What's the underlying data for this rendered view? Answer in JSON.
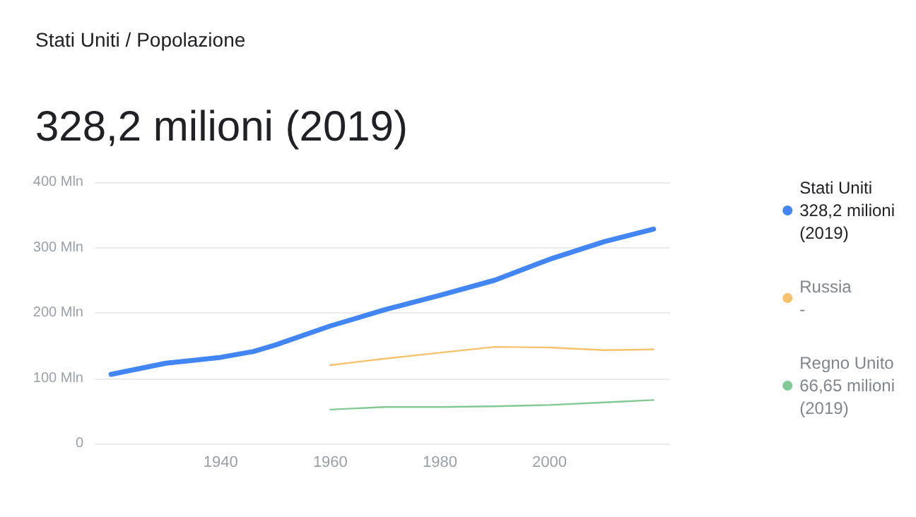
{
  "chart_data": {
    "type": "line",
    "title": "328,2 milioni (2019)",
    "subtitle": "Stati Uniti / Popolazione",
    "x": [
      1920,
      1930,
      1940,
      1946,
      1950,
      1960,
      1970,
      1980,
      1990,
      2000,
      2010,
      2019
    ],
    "series": [
      {
        "name": "Stati Uniti",
        "color": "#4285f4",
        "values": [
          106,
          123,
          132,
          141,
          151,
          180,
          205,
          227,
          250,
          282,
          309,
          328.2
        ]
      },
      {
        "name": "Russia",
        "color": "#f6c26b",
        "values": [
          null,
          null,
          null,
          null,
          null,
          120,
          130,
          139,
          148,
          147,
          143,
          144
        ]
      },
      {
        "name": "Regno Unito",
        "color": "#81c995",
        "values": [
          null,
          null,
          null,
          null,
          null,
          52,
          56,
          56,
          57,
          59,
          63,
          66.65
        ]
      }
    ],
    "annotations": [
      "328,2 milioni (2019)",
      "-",
      "66,65 milioni (2019)"
    ],
    "xlim": [
      1917,
      2022
    ],
    "xticks": [
      1940,
      1960,
      1980,
      2000
    ],
    "ylim": [
      0,
      400
    ],
    "yticks": [
      {
        "value": 0,
        "label": "0"
      },
      {
        "value": 100,
        "label": "100 Mln"
      },
      {
        "value": 200,
        "label": "200 Mln"
      },
      {
        "value": 300,
        "label": "300 Mln"
      },
      {
        "value": 400,
        "label": "400 Mln"
      }
    ],
    "grid": "y",
    "legend": "right",
    "marker": "none",
    "line_style": "solid"
  }
}
